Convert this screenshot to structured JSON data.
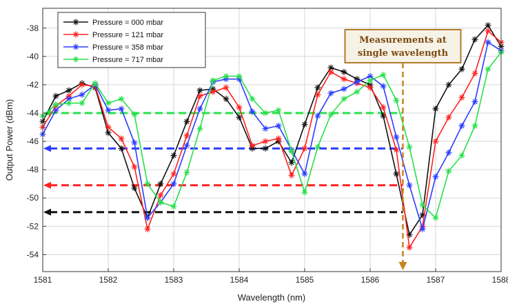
{
  "chart_data": {
    "type": "line",
    "xlabel": "Wavelength (nm)",
    "ylabel": "Output Power (dBm)",
    "xlim": [
      1581,
      1588
    ],
    "ylim": [
      -55.2,
      -36.6
    ],
    "xticks": [
      1581,
      1582,
      1583,
      1584,
      1585,
      1586,
      1587,
      1588
    ],
    "yticks": [
      -54,
      -52,
      -50,
      -48,
      -46,
      -44,
      -42,
      -40,
      -38
    ],
    "grid": true,
    "legend": "top-left",
    "series": [
      {
        "name": "Pressure = 000 mbar",
        "color": "#111111",
        "x": [
          1581.0,
          1581.2,
          1581.4,
          1581.6,
          1581.8,
          1582.0,
          1582.2,
          1582.4,
          1582.6,
          1582.8,
          1583.0,
          1583.2,
          1583.4,
          1583.6,
          1583.8,
          1584.0,
          1584.2,
          1584.4,
          1584.6,
          1584.8,
          1585.0,
          1585.2,
          1585.4,
          1585.6,
          1585.8,
          1586.0,
          1586.2,
          1586.4,
          1586.6,
          1586.8,
          1587.0,
          1587.2,
          1587.4,
          1587.6,
          1587.8,
          1588.0
        ],
        "y": [
          -44.6,
          -42.8,
          -42.4,
          -41.9,
          -42.2,
          -45.4,
          -46.5,
          -49.3,
          -51.4,
          -49.0,
          -47.0,
          -44.6,
          -42.4,
          -42.3,
          -43.0,
          -44.3,
          -46.5,
          -46.5,
          -46.0,
          -47.5,
          -44.8,
          -42.2,
          -40.8,
          -41.1,
          -41.6,
          -42.0,
          -44.2,
          -48.3,
          -52.6,
          -51.2,
          -43.7,
          -42.0,
          -40.9,
          -38.8,
          -37.8,
          -39.3
        ]
      },
      {
        "name": "Pressure = 121 mbar",
        "color": "#ff2020",
        "x": [
          1581.0,
          1581.2,
          1581.4,
          1581.6,
          1581.8,
          1582.0,
          1582.2,
          1582.4,
          1582.6,
          1582.8,
          1583.0,
          1583.2,
          1583.4,
          1583.6,
          1583.8,
          1584.0,
          1584.2,
          1584.4,
          1584.6,
          1584.8,
          1585.0,
          1585.2,
          1585.4,
          1585.6,
          1585.8,
          1586.0,
          1586.2,
          1586.4,
          1586.6,
          1586.8,
          1587.0,
          1587.2,
          1587.4,
          1587.6,
          1587.8,
          1588.0
        ],
        "y": [
          -45.0,
          -43.5,
          -42.8,
          -42.0,
          -42.1,
          -45.0,
          -45.8,
          -47.8,
          -52.2,
          -49.8,
          -48.3,
          -45.6,
          -42.8,
          -42.5,
          -42.2,
          -43.6,
          -46.3,
          -46.0,
          -45.8,
          -48.4,
          -46.5,
          -42.7,
          -41.1,
          -41.6,
          -41.9,
          -42.2,
          -43.6,
          -46.6,
          -53.5,
          -52.0,
          -46.0,
          -44.3,
          -42.9,
          -41.2,
          -38.2,
          -39.0
        ]
      },
      {
        "name": "Pressure = 358 mbar",
        "color": "#2a3dff",
        "x": [
          1581.0,
          1581.2,
          1581.4,
          1581.6,
          1581.8,
          1582.0,
          1582.2,
          1582.4,
          1582.6,
          1582.8,
          1583.0,
          1583.2,
          1583.4,
          1583.6,
          1583.8,
          1584.0,
          1584.2,
          1584.4,
          1584.6,
          1584.8,
          1585.0,
          1585.2,
          1585.4,
          1585.6,
          1585.8,
          1586.0,
          1586.2,
          1586.4,
          1586.6,
          1586.8,
          1587.0,
          1587.2,
          1587.4,
          1587.6,
          1587.8,
          1588.0
        ],
        "y": [
          -45.5,
          -43.8,
          -43.0,
          -42.7,
          -42.0,
          -43.8,
          -43.7,
          -46.1,
          -51.4,
          -50.3,
          -49.0,
          -46.3,
          -43.7,
          -41.8,
          -41.6,
          -41.6,
          -43.9,
          -45.1,
          -44.9,
          -46.6,
          -48.3,
          -44.2,
          -42.6,
          -42.3,
          -41.8,
          -41.4,
          -42.1,
          -45.7,
          -49.1,
          -52.2,
          -48.5,
          -46.8,
          -44.9,
          -43.2,
          -39.0,
          -39.6
        ]
      },
      {
        "name": "Pressure = 717 mbar",
        "color": "#27e04a",
        "x": [
          1581.0,
          1581.2,
          1581.4,
          1581.6,
          1581.8,
          1582.0,
          1582.2,
          1582.4,
          1582.6,
          1582.8,
          1583.0,
          1583.2,
          1583.4,
          1583.6,
          1583.8,
          1584.0,
          1584.2,
          1584.4,
          1584.6,
          1584.8,
          1585.0,
          1585.2,
          1585.4,
          1585.6,
          1585.8,
          1586.0,
          1586.2,
          1586.4,
          1586.6,
          1586.8,
          1587.0,
          1587.2,
          1587.4,
          1587.6,
          1587.8,
          1588.0
        ],
        "y": [
          -44.2,
          -43.4,
          -43.3,
          -43.3,
          -41.9,
          -43.3,
          -43.0,
          -44.1,
          -49.0,
          -50.3,
          -50.6,
          -48.2,
          -45.1,
          -41.7,
          -41.4,
          -41.4,
          -43.0,
          -44.0,
          -43.8,
          -46.7,
          -49.6,
          -46.4,
          -44.1,
          -43.0,
          -42.5,
          -41.7,
          -41.3,
          -43.1,
          -46.4,
          -50.5,
          -51.4,
          -48.1,
          -47.0,
          -44.9,
          -40.9,
          -39.7
        ]
      }
    ],
    "reference_levels": [
      {
        "y": -44.0,
        "color": "#27e04a"
      },
      {
        "y": -46.5,
        "color": "#2a3dff"
      },
      {
        "y": -49.1,
        "color": "#ff2020"
      },
      {
        "y": -51.0,
        "color": "#111111"
      }
    ],
    "measurement_wavelength": 1586.5,
    "annotation": {
      "lines": [
        "Measurements at",
        "single wavelength"
      ],
      "border_color": "#b07a2a",
      "fill_color": "#f7f2e6",
      "arrow_color": "#c8841e"
    }
  }
}
